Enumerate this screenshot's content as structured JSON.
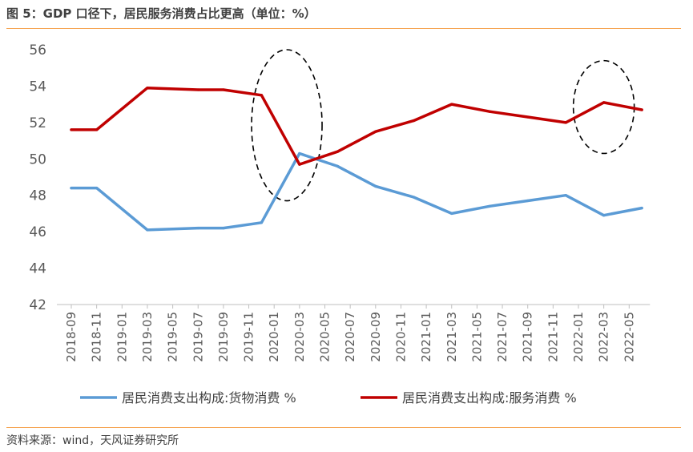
{
  "header": {
    "title": "图 5：GDP 口径下，居民服务消费占比更高（单位：%）"
  },
  "footer": {
    "source": "资料来源：wind，天风证券研究所"
  },
  "chart_data": {
    "type": "line",
    "title": "图 5：GDP 口径下，居民服务消费占比更高（单位：%）",
    "xlabel": "",
    "ylabel": "",
    "ylim": [
      42,
      56
    ],
    "yticks": [
      42,
      44,
      46,
      48,
      50,
      52,
      54,
      56
    ],
    "grid": false,
    "legend_position": "bottom",
    "categories": [
      "2018-09",
      "2018-11",
      "2019-01",
      "2019-03",
      "2019-05",
      "2019-07",
      "2019-09",
      "2019-11",
      "2020-01",
      "2020-03",
      "2020-05",
      "2020-07",
      "2020-09",
      "2020-11",
      "2021-01",
      "2021-03",
      "2021-05",
      "2021-07",
      "2021-09",
      "2021-11",
      "2022-01",
      "2022-03",
      "2022-05"
    ],
    "series": [
      {
        "name": "居民消费支出构成:货物消费 %",
        "color": "#5b9bd5",
        "points": [
          [
            "2018-09",
            48.4
          ],
          [
            "2018-11",
            48.4
          ],
          [
            "2019-03",
            46.1
          ],
          [
            "2019-07",
            46.2
          ],
          [
            "2019-09",
            46.2
          ],
          [
            "2019-12",
            46.5
          ],
          [
            "2020-03",
            50.3
          ],
          [
            "2020-06",
            49.6
          ],
          [
            "2020-09",
            48.5
          ],
          [
            "2020-12",
            47.9
          ],
          [
            "2021-03",
            47.0
          ],
          [
            "2021-06",
            47.4
          ],
          [
            "2021-09",
            47.7
          ],
          [
            "2021-12",
            48.0
          ],
          [
            "2022-03",
            46.9
          ],
          [
            "2022-06",
            47.3
          ]
        ]
      },
      {
        "name": "居民消费支出构成:服务消费 %",
        "color": "#c00000",
        "points": [
          [
            "2018-09",
            51.6
          ],
          [
            "2018-11",
            51.6
          ],
          [
            "2019-03",
            53.9
          ],
          [
            "2019-07",
            53.8
          ],
          [
            "2019-09",
            53.8
          ],
          [
            "2019-12",
            53.5
          ],
          [
            "2020-03",
            49.7
          ],
          [
            "2020-06",
            50.4
          ],
          [
            "2020-09",
            51.5
          ],
          [
            "2020-12",
            52.1
          ],
          [
            "2021-03",
            53.0
          ],
          [
            "2021-06",
            52.6
          ],
          [
            "2021-09",
            52.3
          ],
          [
            "2021-12",
            52.0
          ],
          [
            "2022-03",
            53.1
          ],
          [
            "2022-06",
            52.7
          ]
        ]
      }
    ],
    "annotations": [
      {
        "type": "dashed-ellipse",
        "around": "2020-02",
        "y_range": [
          47.7,
          56.0
        ]
      },
      {
        "type": "dashed-ellipse",
        "around": "2022-03",
        "y_range": [
          50.3,
          55.4
        ]
      }
    ]
  }
}
